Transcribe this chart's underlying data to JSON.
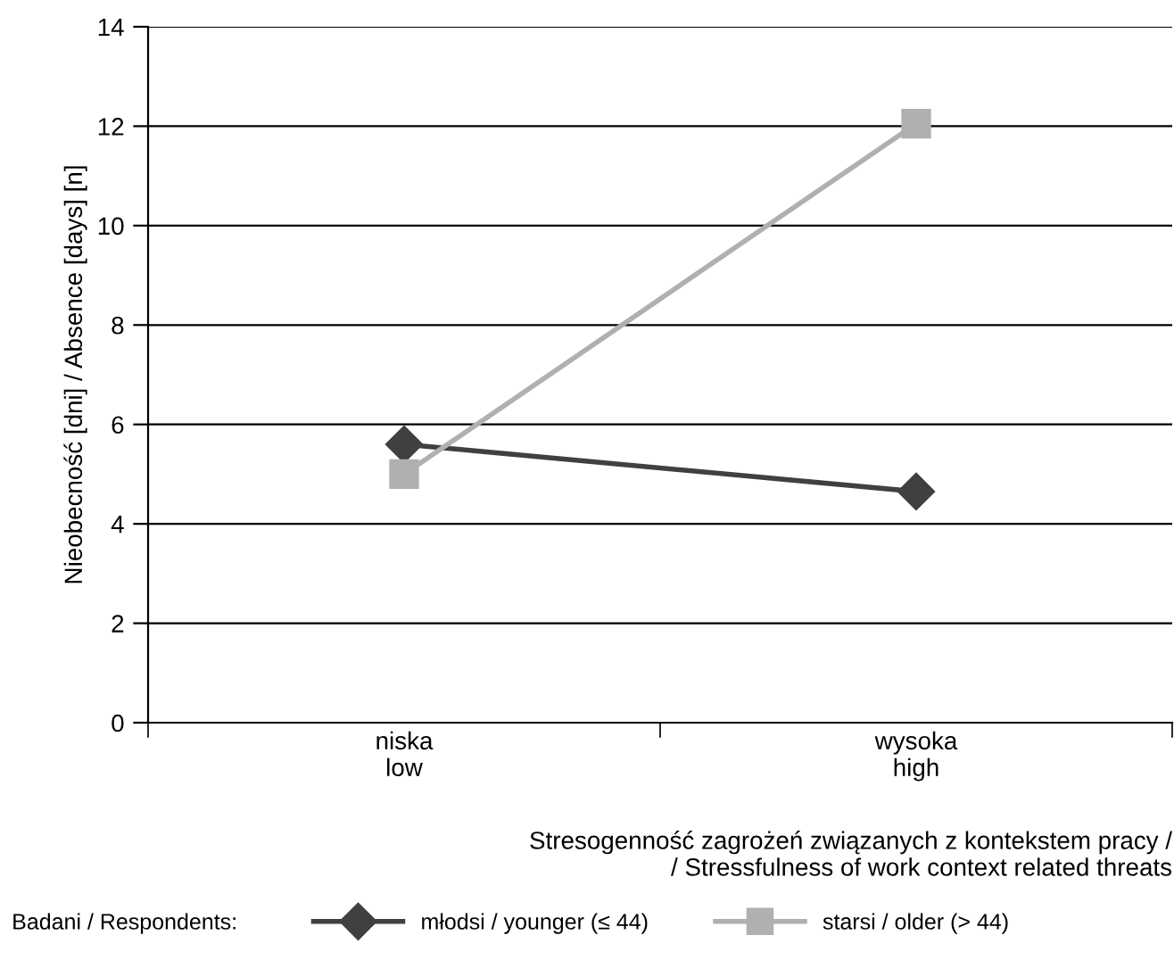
{
  "chart_data": {
    "type": "line",
    "categories": [
      "niska\nlow",
      "wysoka\nhigh"
    ],
    "series": [
      {
        "name": "młodsi / younger (≤ 44)",
        "color": "#404040",
        "values": [
          5.6,
          4.65
        ],
        "marker": "diamond"
      },
      {
        "name": "starsi / older (> 44)",
        "color": "#b0b0b0",
        "values": [
          5.0,
          12.05
        ],
        "marker": "square"
      }
    ],
    "ylabel": "Nieobecność [dni] / Absence [days] [n]",
    "xlabel": "Stresogenność zagrożeń związanych z kontekstem pracy /\n/ Stressfulness of work context related threats",
    "legend_title": "Badani / Respondents:",
    "ylim": [
      0,
      14
    ],
    "yticks": [
      0,
      2,
      4,
      6,
      8,
      10,
      12,
      14
    ],
    "grid": "y",
    "legend": "bottom",
    "line_style": "solid"
  }
}
